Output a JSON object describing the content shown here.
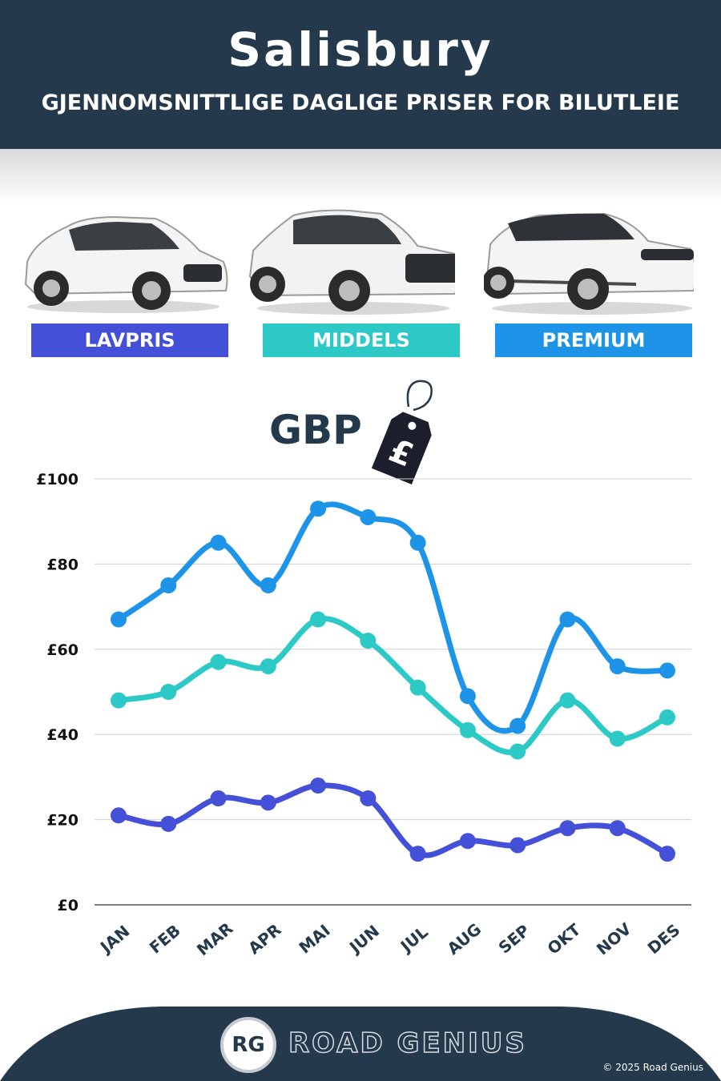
{
  "header": {
    "title": "Salisbury",
    "subtitle": "GJENNOMSNITTLIGE DAGLIGE PRISER FOR BILUTLEIE"
  },
  "categories": [
    {
      "label": "LAVPRIS",
      "color": "#4450d8",
      "car_icon": "hatchback-car-icon"
    },
    {
      "label": "MIDDELS",
      "color": "#2cc9c7",
      "car_icon": "suv-car-icon"
    },
    {
      "label": "PREMIUM",
      "color": "#1e94e8",
      "car_icon": "luxury-suv-car-icon"
    }
  ],
  "currency": {
    "label": "GBP",
    "symbol": "£",
    "icon": "price-tag-icon"
  },
  "chart_data": {
    "type": "line",
    "categories": [
      "JAN",
      "FEB",
      "MAR",
      "APR",
      "MAI",
      "JUN",
      "JUL",
      "AUG",
      "SEP",
      "OKT",
      "NOV",
      "DES"
    ],
    "series": [
      {
        "name": "PREMIUM",
        "color": "#1e94e8",
        "values": [
          67,
          75,
          85,
          75,
          93,
          91,
          85,
          49,
          42,
          67,
          56,
          55
        ]
      },
      {
        "name": "MIDDELS",
        "color": "#2cc9c7",
        "values": [
          48,
          50,
          57,
          56,
          67,
          62,
          51,
          41,
          36,
          48,
          39,
          44
        ]
      },
      {
        "name": "LAVPRIS",
        "color": "#4450d8",
        "values": [
          21,
          19,
          25,
          24,
          28,
          25,
          12,
          15,
          14,
          18,
          18,
          12
        ]
      }
    ],
    "y_ticks": [
      "£0",
      "£20",
      "£40",
      "£60",
      "£80",
      "£100"
    ],
    "ylim": [
      0,
      100
    ],
    "grid": true
  },
  "footer": {
    "logo_text": "RG",
    "brand": "ROAD GENIUS",
    "copyright": "© 2025 Road Genius"
  }
}
